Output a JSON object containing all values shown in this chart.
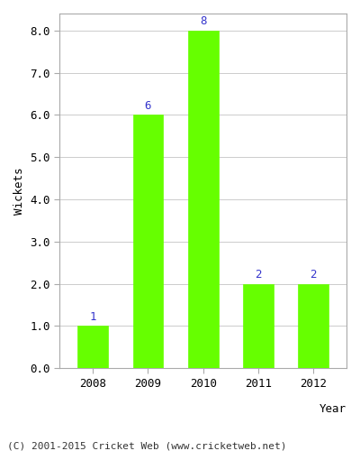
{
  "years": [
    "2008",
    "2009",
    "2010",
    "2011",
    "2012"
  ],
  "values": [
    1,
    6,
    8,
    2,
    2
  ],
  "bar_color": "#66ff00",
  "bar_edge_color": "#66ff00",
  "title": "",
  "xlabel": "Year",
  "ylabel": "Wickets",
  "ylim": [
    0.0,
    8.4
  ],
  "yticks": [
    0.0,
    1.0,
    2.0,
    3.0,
    4.0,
    5.0,
    6.0,
    7.0,
    8.0
  ],
  "label_color": "#3333cc",
  "label_fontsize": 9,
  "axis_label_fontsize": 9,
  "tick_fontsize": 9,
  "footer_text": "(C) 2001-2015 Cricket Web (www.cricketweb.net)",
  "footer_fontsize": 8,
  "background_color": "#ffffff",
  "grid_color": "#cccccc",
  "spine_color": "#aaaaaa"
}
